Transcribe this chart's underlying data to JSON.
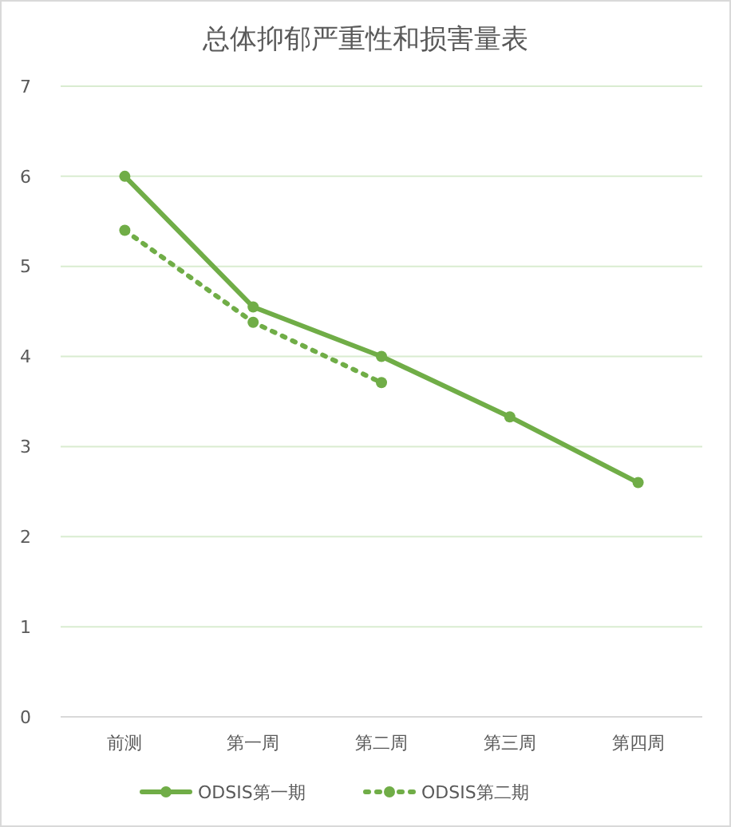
{
  "chart_data": {
    "type": "line",
    "title": "总体抑郁严重性和损害量表",
    "categories": [
      "前测",
      "第一周",
      "第二周",
      "第三周",
      "第四周"
    ],
    "series": [
      {
        "name": "ODSIS第一期",
        "color": "#70ad47",
        "values": [
          6.0,
          4.55,
          4.0,
          3.33,
          2.6
        ],
        "line_style": "solid"
      },
      {
        "name": "ODSIS第二期",
        "color": "#70ad47",
        "values": [
          5.4,
          4.38,
          3.71,
          null,
          null
        ],
        "line_style": "dotted"
      }
    ],
    "ylim": [
      0,
      7
    ],
    "yticks": [
      0,
      1,
      2,
      3,
      4,
      5,
      6,
      7
    ],
    "grid": "y",
    "legend": "bottom",
    "marker": "circle"
  }
}
